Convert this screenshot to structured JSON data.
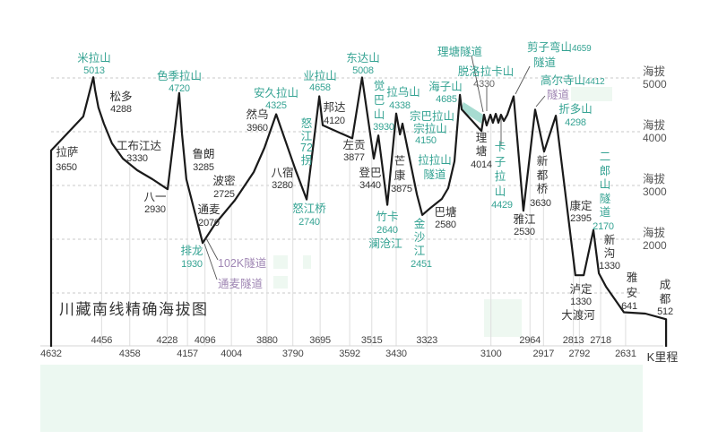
{
  "title": "川藏南线精确海拔图",
  "chart_data": {
    "type": "line",
    "title": "川藏南线精确海拔图",
    "xlabel": "K里程",
    "ylabel": "海拔",
    "x_direction": "descending",
    "xlim": [
      4632,
      2490
    ],
    "ylim": [
      0,
      5000
    ],
    "grid": true,
    "grid_lines_y": [
      5000,
      4000,
      3000,
      2000,
      1000
    ],
    "y_ticks": [
      {
        "label": "海拔",
        "value": 5000
      },
      {
        "label": "海拔",
        "value": 4000
      },
      {
        "label": "海拔",
        "value": 3000
      },
      {
        "label": "海拔",
        "value": 2000
      }
    ],
    "x_ticks_upper": [
      4456,
      4228,
      4096,
      3880,
      3695,
      3515,
      3323,
      2964,
      2813,
      2718
    ],
    "x_ticks_lower": [
      4632,
      4358,
      4157,
      4004,
      3790,
      3592,
      3430,
      3100,
      2917,
      2792,
      2631
    ],
    "profile": [
      [
        4632,
        0
      ],
      [
        4632,
        3650
      ],
      [
        4570,
        4000
      ],
      [
        4520,
        4283
      ],
      [
        4485,
        5013
      ],
      [
        4479,
        4783
      ],
      [
        4467,
        4450
      ],
      [
        4448,
        4150
      ],
      [
        4420,
        3783
      ],
      [
        4382,
        3500
      ],
      [
        4332,
        3283
      ],
      [
        4279,
        3117
      ],
      [
        4226,
        2930
      ],
      [
        4186,
        4720
      ],
      [
        4176,
        3950
      ],
      [
        4161,
        3117
      ],
      [
        4129,
        2450
      ],
      [
        4104,
        1930
      ],
      [
        4061,
        2283
      ],
      [
        3992,
        2725
      ],
      [
        3926,
        3250
      ],
      [
        3889,
        3700
      ],
      [
        3848,
        4325
      ],
      [
        3780,
        3280
      ],
      [
        3742,
        2740
      ],
      [
        3698,
        4658
      ],
      [
        3686,
        4120
      ],
      [
        3583,
        3877
      ],
      [
        3549,
        5008
      ],
      [
        3508,
        3500
      ],
      [
        3492,
        3930
      ],
      [
        3461,
        2640
      ],
      [
        3430,
        4338
      ],
      [
        3417,
        3950
      ],
      [
        3408,
        4150
      ],
      [
        3358,
        2833
      ],
      [
        3339,
        2451
      ],
      [
        3311,
        2580
      ],
      [
        3271,
        2750
      ],
      [
        3249,
        2950
      ],
      [
        3227,
        3450
      ],
      [
        3208,
        4685
      ],
      [
        3202,
        4417
      ],
      [
        3133,
        4014
      ],
      [
        3124,
        4317
      ],
      [
        3115,
        4117
      ],
      [
        3102,
        4317
      ],
      [
        3093,
        4167
      ],
      [
        3083,
        4333
      ],
      [
        3074,
        4167
      ],
      [
        3065,
        4317
      ],
      [
        3055,
        4200
      ],
      [
        3043,
        4317
      ],
      [
        3021,
        4659
      ],
      [
        2987,
        2530
      ],
      [
        2946,
        4412
      ],
      [
        2915,
        3630
      ],
      [
        2874,
        4298
      ],
      [
        2806,
        1330
      ],
      [
        2777,
        1330
      ],
      [
        2743,
        2170
      ],
      [
        2724,
        1367
      ],
      [
        2699,
        1117
      ],
      [
        2637,
        641
      ],
      [
        2562,
        617
      ],
      [
        2490,
        512
      ],
      [
        2490,
        0
      ]
    ],
    "places": [
      {
        "name": "拉萨",
        "display": "拉萨",
        "elevation": 3650,
        "kind": "town"
      },
      {
        "name": "米拉山",
        "display": "米拉山",
        "elevation": 5013,
        "kind": "pass"
      },
      {
        "name": "松多",
        "display": "松多",
        "elevation": 4288,
        "kind": "town"
      },
      {
        "name": "工布江达",
        "display": "工布江达",
        "elevation": 3330,
        "kind": "town"
      },
      {
        "name": "八一",
        "display": "八一",
        "elevation": 2930,
        "kind": "town"
      },
      {
        "name": "色季拉山",
        "display": "色季拉山",
        "elevation": 4720,
        "kind": "pass"
      },
      {
        "name": "鲁朗",
        "display": "鲁朗",
        "elevation": 3285,
        "kind": "town"
      },
      {
        "name": "通麦",
        "display": "通麦",
        "elevation": 2070,
        "kind": "town"
      },
      {
        "name": "排龙",
        "display": "排龙",
        "elevation": 1930,
        "kind": "pass"
      },
      {
        "name": "波密",
        "display": "波密",
        "elevation": 2725,
        "kind": "town"
      },
      {
        "name": "然乌",
        "display": "然乌",
        "elevation": 3960,
        "kind": "town"
      },
      {
        "name": "安久拉山",
        "display": "安久拉山",
        "elevation": 4325,
        "kind": "pass"
      },
      {
        "name": "八宿",
        "display": "八宿",
        "elevation": 3280,
        "kind": "town"
      },
      {
        "name": "怒江72拐",
        "display": "怒\n江\n72\n拐",
        "elevation": null,
        "kind": "feature"
      },
      {
        "name": "怒江桥",
        "display": "怒江桥",
        "elevation": 2740,
        "kind": "pass"
      },
      {
        "name": "业拉山",
        "display": "业拉山",
        "elevation": 4658,
        "kind": "pass"
      },
      {
        "name": "邦达",
        "display": "邦达",
        "elevation": 4120,
        "kind": "town"
      },
      {
        "name": "左贡",
        "display": "左贡",
        "elevation": 3877,
        "kind": "town"
      },
      {
        "name": "东达山",
        "display": "东达山",
        "elevation": 5008,
        "kind": "pass"
      },
      {
        "name": "觉巴山",
        "display": "觉\n巴\n山",
        "elevation": 3930,
        "kind": "pass"
      },
      {
        "name": "登巴",
        "display": "登巴",
        "elevation": 3440,
        "kind": "town"
      },
      {
        "name": "竹卡",
        "display": "竹卡",
        "elevation": 2640,
        "kind": "pass",
        "note": "澜沧江"
      },
      {
        "name": "拉乌山",
        "display": "拉乌山",
        "elevation": 4338,
        "kind": "pass"
      },
      {
        "name": "芒康",
        "display": "芒\n康",
        "elevation": 3875,
        "kind": "town"
      },
      {
        "name": "宗巴拉山",
        "display": "宗巴拉山",
        "elevation": 4150,
        "kind": "pass",
        "note": "宗拉山"
      },
      {
        "name": "拉拉山隧道",
        "display": "拉拉山\n隧道",
        "elevation": null,
        "kind": "tunnel"
      },
      {
        "name": "金沙江",
        "display": "金\n沙\n江",
        "elevation": 2451,
        "kind": "pass"
      },
      {
        "name": "巴塘",
        "display": "巴塘",
        "elevation": 2580,
        "kind": "town"
      },
      {
        "name": "海子山",
        "display": "海子山",
        "elevation": 4685,
        "kind": "pass"
      },
      {
        "name": "理塘隧道",
        "display": "理塘隧道",
        "elevation": null,
        "kind": "tunnel"
      },
      {
        "name": "脱洛拉卡山",
        "display": "脱洛拉卡山",
        "elevation": 4330,
        "kind": "pass"
      },
      {
        "name": "理塘",
        "display": "理\n塘",
        "elevation": 4014,
        "kind": "town"
      },
      {
        "name": "卡子拉山",
        "display": "卡\n子\n拉\n山",
        "elevation": 4429,
        "kind": "pass"
      },
      {
        "name": "剪子弯山",
        "display": "剪子弯山",
        "elevation": 4659,
        "kind": "pass",
        "note": "隧道"
      },
      {
        "name": "雅江",
        "display": "雅江",
        "elevation": 2530,
        "kind": "town"
      },
      {
        "name": "高尔寺山",
        "display": "高尔寺山",
        "elevation": 4412,
        "kind": "pass",
        "note": "隧道"
      },
      {
        "name": "新都桥",
        "display": "新\n都\n桥",
        "elevation": 3630,
        "kind": "town"
      },
      {
        "name": "折多山",
        "display": "折多山",
        "elevation": 4298,
        "kind": "pass"
      },
      {
        "name": "康定",
        "display": "康定",
        "elevation": 2395,
        "kind": "town"
      },
      {
        "name": "泸定",
        "display": "泸定",
        "elevation": 1330,
        "kind": "town",
        "note": "大渡河"
      },
      {
        "name": "二郎山隧道",
        "display": "二\n郎\n山\n隧\n道",
        "elevation": 2170,
        "kind": "tunnel"
      },
      {
        "name": "新沟",
        "display": "新\n沟",
        "elevation": 1330,
        "kind": "town"
      },
      {
        "name": "雅安",
        "display": "雅\n安",
        "elevation": 641,
        "kind": "town"
      },
      {
        "name": "成都",
        "display": "成\n都",
        "elevation": 512,
        "kind": "town"
      }
    ],
    "tunnel_annotations": [
      {
        "label": "102K隧道"
      },
      {
        "label": "通麦隧道"
      }
    ],
    "colors": {
      "line": "#1a1a1a",
      "pass_label": "#35a393",
      "town_label": "#333333",
      "tunnel_label": "#a087b4",
      "grid": "#cfcfcf",
      "highlight": "#ecf8f1"
    }
  }
}
